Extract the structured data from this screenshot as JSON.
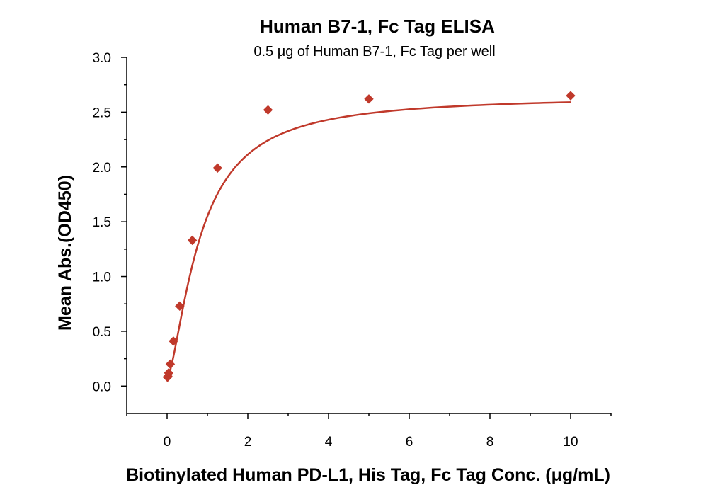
{
  "chart_data": {
    "type": "scatter",
    "title": "Human B7-1, Fc Tag ELISA",
    "subtitle": "0.5 μg of Human B7-1, Fc Tag per well",
    "xlabel": "Biotinylated Human PD-L1, His Tag, Fc Tag Conc. (μg/mL)",
    "ylabel": "Mean Abs.(OD450)",
    "xlim": [
      -1,
      11
    ],
    "ylim": [
      -0.25,
      3.0
    ],
    "x_ticks": [
      0,
      2,
      4,
      6,
      8,
      10
    ],
    "y_ticks": [
      0.0,
      0.5,
      1.0,
      1.5,
      2.0,
      2.5,
      3.0
    ],
    "x_tick_labels": [
      "0",
      "2",
      "4",
      "6",
      "8",
      "10"
    ],
    "y_tick_labels": [
      "0.0",
      "0.5",
      "1.0",
      "1.5",
      "2.0",
      "2.5",
      "3.0"
    ],
    "grid": false,
    "legend": "none",
    "series": [
      {
        "color": "#c0392b",
        "marker": "diamond",
        "x": [
          0.0098,
          0.0195,
          0.0391,
          0.0781,
          0.156,
          0.3125,
          0.625,
          1.25,
          2.5,
          5,
          10
        ],
        "y": [
          0.08,
          0.09,
          0.12,
          0.2,
          0.41,
          0.73,
          1.33,
          1.99,
          2.52,
          2.62,
          2.65
        ],
        "fit": {
          "model": "four-parameter logistic",
          "bottom": 0.07,
          "top": 2.65,
          "ec50": 0.82,
          "hill": 1.5
        }
      }
    ]
  }
}
